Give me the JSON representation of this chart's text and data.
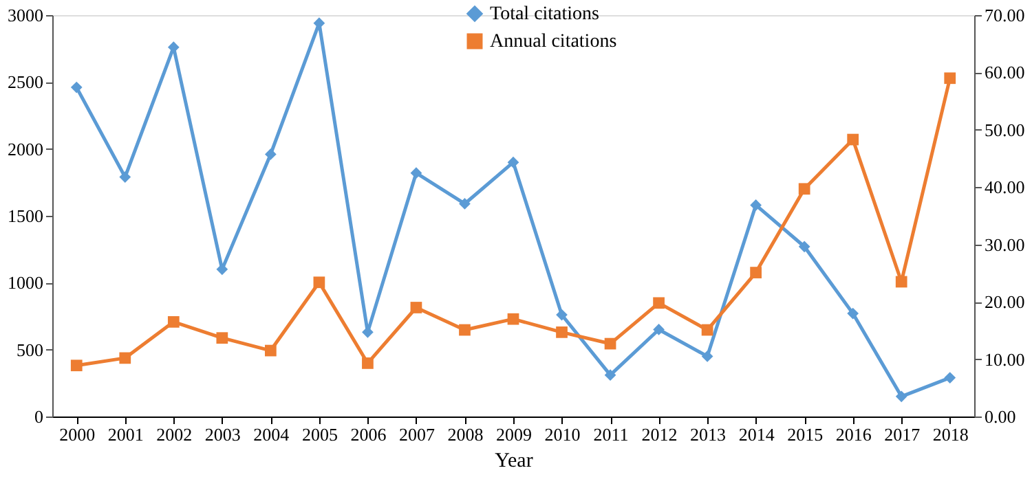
{
  "chart_data": {
    "type": "line",
    "xlabel": "Year",
    "categories": [
      "2000",
      "2001",
      "2002",
      "2003",
      "2004",
      "2005",
      "2006",
      "2007",
      "2008",
      "2009",
      "2010",
      "2011",
      "2012",
      "2013",
      "2014",
      "2015",
      "2016",
      "2017",
      "2018"
    ],
    "series": [
      {
        "name": "Total citations",
        "color": "#5b9bd5",
        "marker": "diamond",
        "values": [
          2460,
          1790,
          2760,
          1100,
          1960,
          2940,
          630,
          1820,
          1590,
          1900,
          760,
          310,
          650,
          450,
          1580,
          1270,
          770,
          150,
          290
        ]
      },
      {
        "name": "Annual citations",
        "color": "#ed7d31",
        "marker": "square",
        "axis": "y2",
        "values": [
          8.9,
          10.2,
          16.5,
          13.7,
          11.5,
          23.4,
          9.3,
          19.0,
          15.1,
          17.0,
          14.7,
          12.7,
          19.8,
          15.1,
          25.1,
          39.7,
          48.3,
          23.5,
          59.0
        ]
      }
    ],
    "ylim": [
      0,
      3000
    ],
    "yticks": [
      0,
      500,
      1000,
      1500,
      2000,
      2500,
      3000
    ],
    "y2lim": [
      0,
      70
    ],
    "y2ticks": [
      {
        "value": 0,
        "label": "0.00"
      },
      {
        "value": 10,
        "label": "10.00"
      },
      {
        "value": 20,
        "label": "20.00"
      },
      {
        "value": 30,
        "label": "30.00"
      },
      {
        "value": 40,
        "label": "40.00"
      },
      {
        "value": 50,
        "label": "50.00"
      },
      {
        "value": 60,
        "label": "60.00"
      },
      {
        "value": 70,
        "label": "70.00"
      }
    ],
    "grid": false,
    "legend": "top",
    "line_style": "solid"
  }
}
